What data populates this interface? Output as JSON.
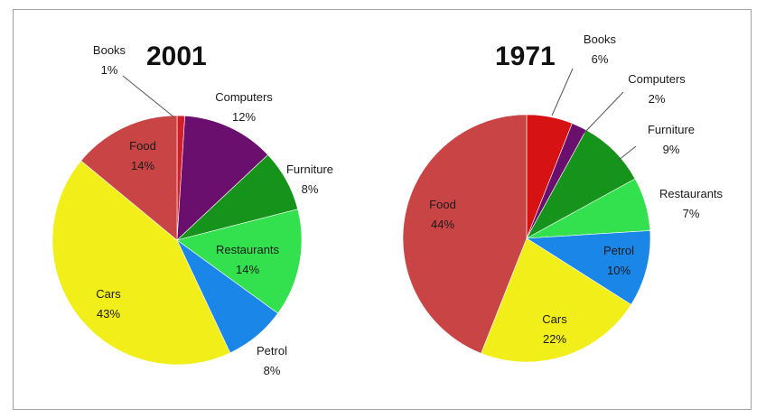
{
  "chart_data": [
    {
      "type": "pie",
      "title": "2001",
      "categories": [
        "Books",
        "Computers",
        "Furniture",
        "Restaurants",
        "Petrol",
        "Cars",
        "Food"
      ],
      "values": [
        1,
        12,
        8,
        14,
        8,
        43,
        14
      ],
      "value_labels": [
        "1%",
        "12%",
        "8%",
        "14%",
        "8%",
        "43%",
        "14%"
      ],
      "colors": [
        "#d21f2a",
        "#6b0f6e",
        "#15931b",
        "#33e04e",
        "#1a86e8",
        "#f2ee1a",
        "#c94545"
      ]
    },
    {
      "type": "pie",
      "title": "1971",
      "categories": [
        "Books",
        "Computers",
        "Furniture",
        "Restaurants",
        "Petrol",
        "Cars",
        "Food"
      ],
      "values": [
        6,
        2,
        9,
        7,
        10,
        22,
        44
      ],
      "value_labels": [
        "6%",
        "2%",
        "9%",
        "7%",
        "10%",
        "22%",
        "44%"
      ],
      "colors": [
        "#d61212",
        "#6b0f6e",
        "#15931b",
        "#33e04e",
        "#1a86e8",
        "#f2ee1a",
        "#c94545"
      ]
    }
  ]
}
